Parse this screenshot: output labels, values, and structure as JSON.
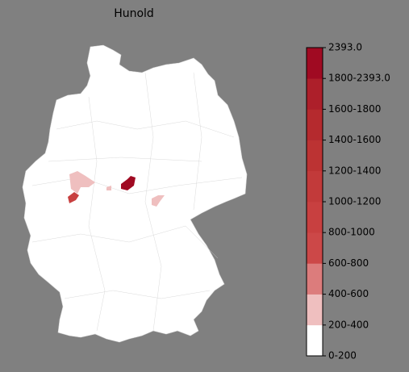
{
  "title": "Hunold",
  "colorbar": {
    "ticks": [
      "0-200",
      "200-400",
      "400-600",
      "600-800",
      "800-1000",
      "1000-1200",
      "1200-1400",
      "1400-1600",
      "1600-1800",
      "1800-2393.0",
      "2393.0"
    ],
    "colors": [
      "#ffffff",
      "#efbfbf",
      "#dc7c7c",
      "#cc4848",
      "#c84040",
      "#c23a3a",
      "#bc3333",
      "#b52a2e",
      "#ad1f2a",
      "#a00a22"
    ]
  }
}
